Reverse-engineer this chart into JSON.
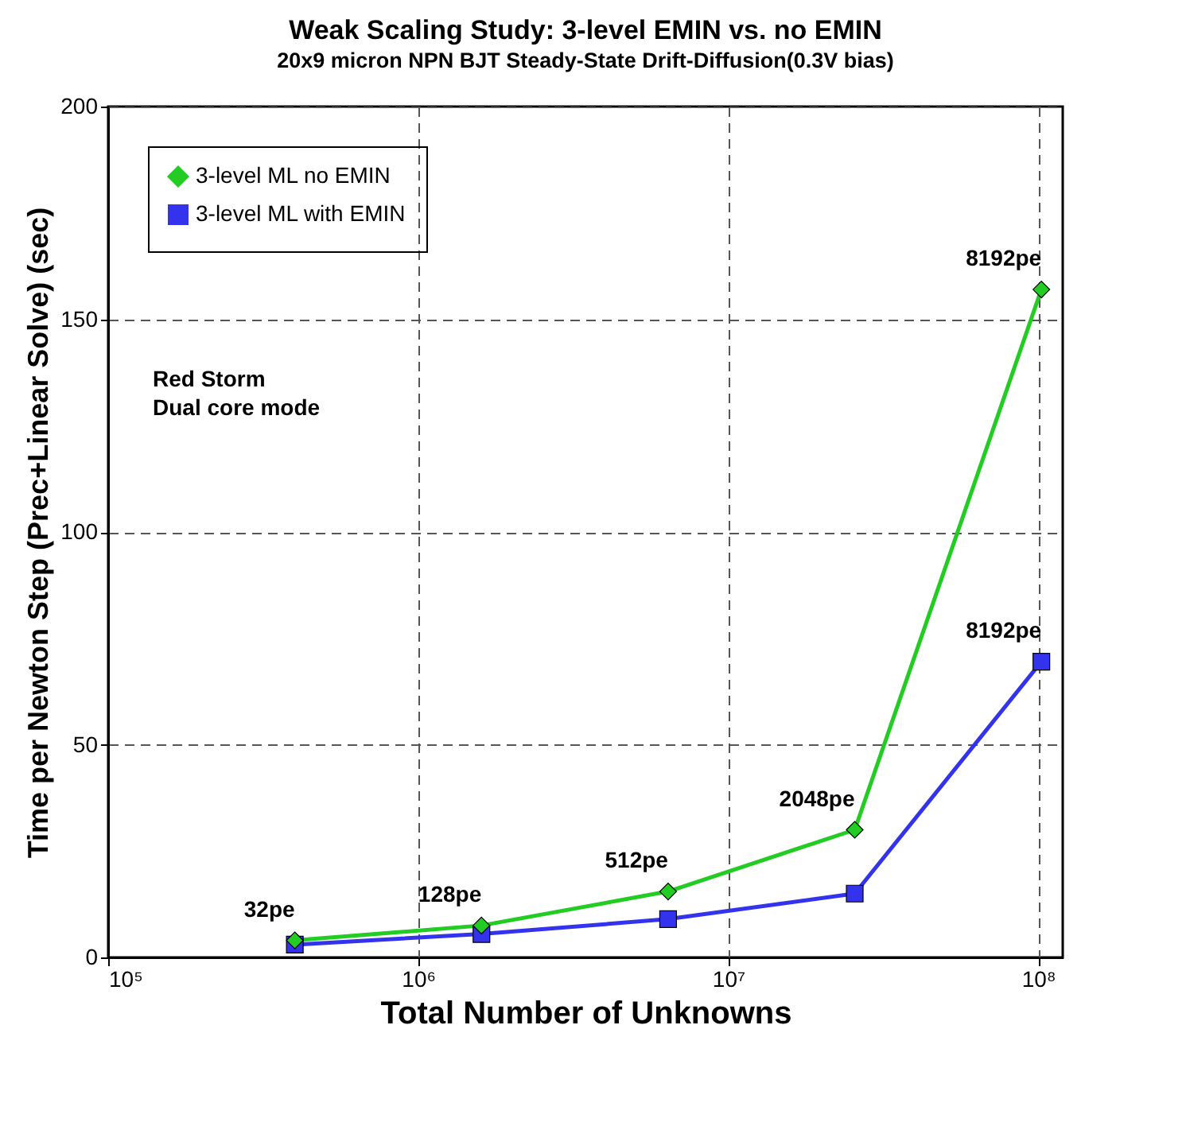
{
  "chart_data": {
    "type": "line",
    "title": "Weak Scaling Study: 3-level EMIN vs. no EMIN",
    "subtitle": "20x9 micron NPN BJT Steady-State Drift-Diffusion(0.3V bias)",
    "xlabel": "Total Number of Unknowns",
    "ylabel": "Time per Newton Step (Prec+Linear Solve) (sec)",
    "x": [
      400000,
      1600000,
      6400000,
      25600000,
      102400000
    ],
    "series": [
      {
        "name": "3-level ML no EMIN",
        "color": "#22cc22",
        "marker": "diamond",
        "values": [
          4,
          7.5,
          15.5,
          30,
          157
        ]
      },
      {
        "name": "3-level ML with EMIN",
        "color": "#3333ee",
        "marker": "square",
        "values": [
          3,
          5.5,
          9,
          15,
          69.5
        ]
      }
    ],
    "log": "x",
    "xlim": [
      100000,
      120000000
    ],
    "xticks": [
      {
        "value": 100000,
        "label": "10⁵"
      },
      {
        "value": 1000000,
        "label": "10⁶"
      },
      {
        "value": 10000000,
        "label": "10⁷"
      },
      {
        "value": 100000000,
        "label": "10⁸"
      }
    ],
    "ylim": [
      0,
      200
    ],
    "yticks": [
      0,
      50,
      100,
      150,
      200
    ],
    "grid": true,
    "legend": "top left",
    "line_style": "solid",
    "annotations": [
      {
        "text": "32pe",
        "x": 400000,
        "y": 4
      },
      {
        "text": "128pe",
        "x": 1600000,
        "y": 7.5
      },
      {
        "text": "512pe",
        "x": 6400000,
        "y": 15.5
      },
      {
        "text": "2048pe",
        "x": 25600000,
        "y": 30
      },
      {
        "text": "8192pe",
        "x": 102400000,
        "y": 157
      },
      {
        "text": "8192pe",
        "x": 102400000,
        "y": 69.5
      },
      "Red Storm\nDual core mode"
    ]
  }
}
